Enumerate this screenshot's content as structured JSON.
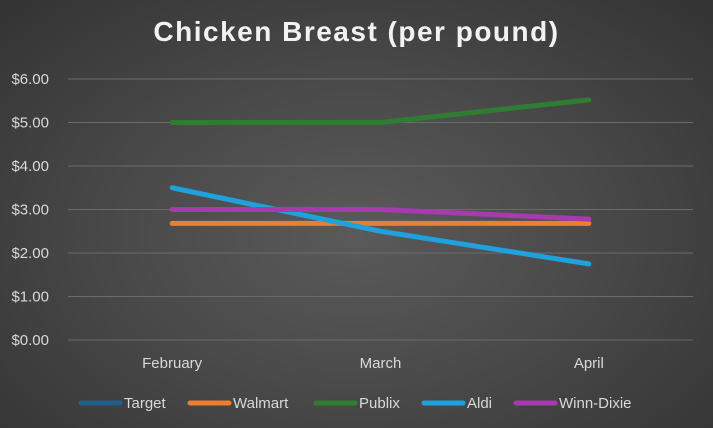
{
  "chart_data": {
    "type": "line",
    "title": "Chicken Breast (per pound)",
    "categories": [
      "February",
      "March",
      "April"
    ],
    "y_ticks": [
      "$0.00",
      "$1.00",
      "$2.00",
      "$3.00",
      "$4.00",
      "$5.00",
      "$6.00"
    ],
    "ylim": [
      0,
      6
    ],
    "grid": true,
    "legend_position": "bottom",
    "series": [
      {
        "name": "Target",
        "color": "#1f5f8b",
        "values": [
          2.68,
          2.68,
          2.68
        ]
      },
      {
        "name": "Walmart",
        "color": "#ed7d31",
        "values": [
          2.68,
          2.68,
          2.68
        ]
      },
      {
        "name": "Publix",
        "color": "#2e7d32",
        "values": [
          5.0,
          5.0,
          5.52
        ]
      },
      {
        "name": "Aldi",
        "color": "#1ea1dc",
        "values": [
          3.5,
          2.5,
          1.75
        ]
      },
      {
        "name": "Winn-Dixie",
        "color": "#a83ab0",
        "values": [
          3.0,
          3.0,
          2.78
        ]
      }
    ]
  }
}
